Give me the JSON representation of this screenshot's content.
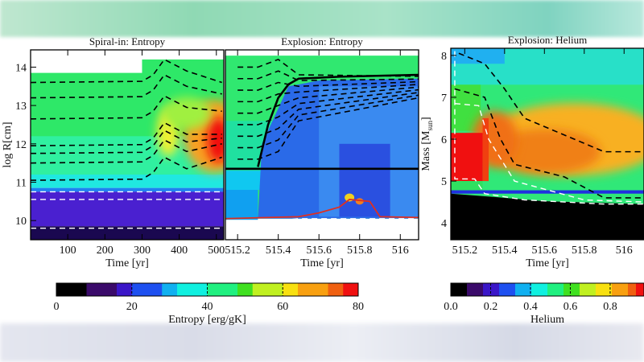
{
  "chart_data": [
    {
      "type": "heatmap",
      "title": "Spiral-in: Entropy",
      "xlabel": "Time [yr]",
      "ylabel": "log R[cm]",
      "xlim": [
        0,
        520
      ],
      "ylim": [
        9.5,
        14.45
      ],
      "xticks": [
        100,
        200,
        300,
        400,
        500
      ],
      "yticks": [
        10,
        11,
        12,
        13,
        14
      ],
      "colorbar": "entropy",
      "lines": [
        {
          "style": "solid",
          "color": "#000000",
          "x": [
            0,
            100,
            200,
            250,
            300,
            330,
            350,
            380,
            420,
            470,
            515
          ],
          "y": [
            13.8,
            13.75,
            13.6,
            13.45,
            13.15,
            12.7,
            12.35,
            12.05,
            11.85,
            11.65,
            11.45
          ]
        },
        {
          "style": "solid",
          "color": "#e03020",
          "x": [
            480,
            500,
            515
          ],
          "y": [
            10.72,
            10.68,
            10.55
          ]
        }
      ]
    },
    {
      "type": "heatmap",
      "title": "Explosion: Entropy",
      "xlabel": "Time [yr]",
      "ylabel": "",
      "xlim": [
        515.14,
        516.09
      ],
      "ylim": [
        9.5,
        14.45
      ],
      "xticks": [
        515.2,
        515.4,
        515.6,
        515.8,
        516.0
      ],
      "yticks": [],
      "colorbar": "entropy",
      "lines": [
        {
          "style": "solid",
          "color": "#000000",
          "x": [
            515.14,
            516.09
          ],
          "y": [
            11.35,
            11.35
          ]
        },
        {
          "style": "solid",
          "color": "#000000",
          "x": [
            515.3,
            515.35,
            515.4,
            515.45,
            515.5,
            515.7,
            516.09
          ],
          "y": [
            11.4,
            12.5,
            13.2,
            13.55,
            13.7,
            13.75,
            13.8
          ]
        },
        {
          "style": "solid",
          "color": "#e03020",
          "x": [
            515.14,
            515.5,
            515.6,
            515.7,
            515.75,
            515.85,
            515.9,
            516.09
          ],
          "y": [
            10.05,
            10.1,
            10.2,
            10.35,
            10.55,
            10.5,
            10.1,
            10.08
          ]
        }
      ]
    },
    {
      "type": "heatmap",
      "title": "Explosion: Helium",
      "xlabel": "Time [yr]",
      "ylabel": "Mass [M",
      "ylabel_sub": "sun",
      "ylabel_end": "]",
      "xlim": [
        515.13,
        516.1
      ],
      "ylim": [
        3.6,
        8.17
      ],
      "xticks": [
        515.2,
        515.4,
        515.6,
        515.8,
        516.0
      ],
      "yticks": [
        4,
        5,
        6,
        7,
        8
      ],
      "colorbar": "helium"
    }
  ],
  "colorbars": {
    "entropy": {
      "label": "Entropy [erg/gK]",
      "min": 0,
      "max": 80,
      "ticks": [
        "0",
        "20",
        "40",
        "60",
        "80"
      ]
    },
    "helium": {
      "label": "Helium",
      "min": 0,
      "max": 0.97,
      "ticks": [
        "0.0",
        "0.2",
        "0.4",
        "0.6",
        "0.8"
      ]
    }
  },
  "colors": {
    "colormap": [
      "#000000",
      "#3a0a6a",
      "#3a16c8",
      "#1e50f0",
      "#10b0f0",
      "#10f0e0",
      "#20f080",
      "#40e020",
      "#c0f020",
      "#f8e010",
      "#f8a010",
      "#f06010",
      "#f01010"
    ]
  }
}
